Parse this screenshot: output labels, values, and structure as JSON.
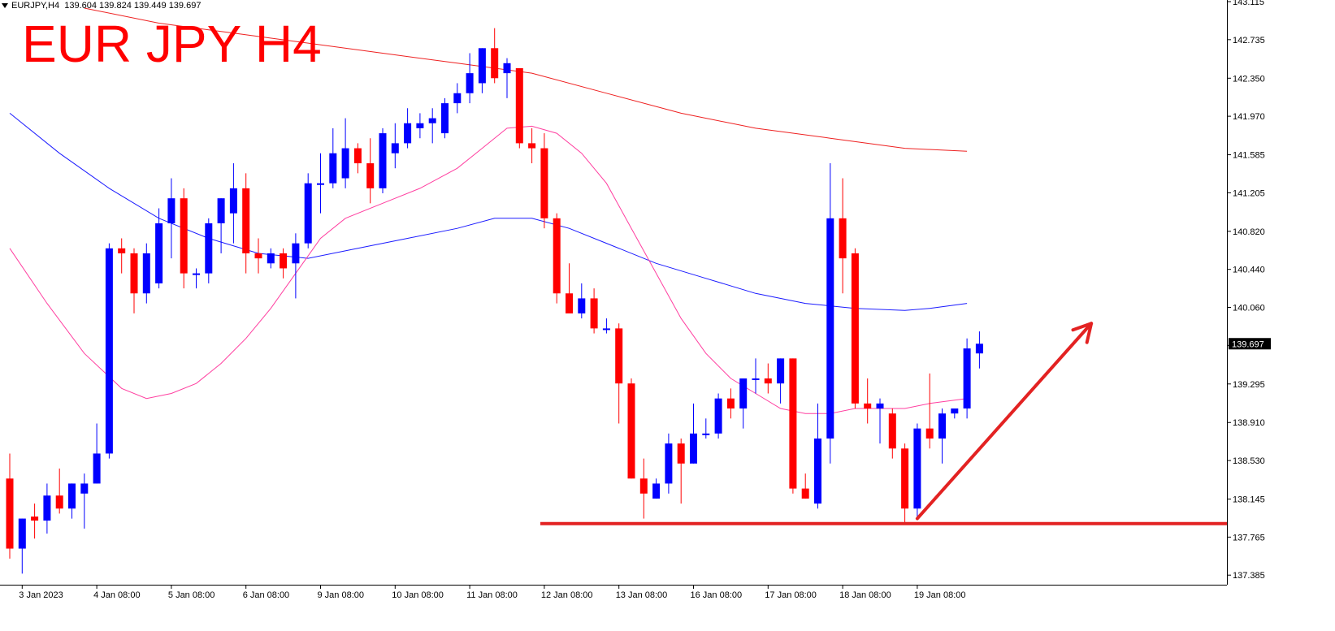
{
  "header": {
    "symbol_label": "EURJPY,H4",
    "ohlc_label": "139.604 139.824 139.449 139.697",
    "big_title": "EUR JPY H4"
  },
  "colors": {
    "bull": "#0000ff",
    "bear": "#ff0000",
    "ma_fast": "#ff3fa0",
    "ma_mid": "#1a1aff",
    "ma_slow": "#ee2020",
    "annotation": "#e32222",
    "axis": "#000000",
    "price_tag_bg": "#000000"
  },
  "chart_data": {
    "type": "candlestick",
    "title": "EUR JPY H4",
    "ylim": [
      137.2,
      143.115
    ],
    "y_ticks": [
      "143.115",
      "142.735",
      "142.350",
      "141.970",
      "141.585",
      "141.205",
      "140.820",
      "140.440",
      "140.060",
      "139.680",
      "139.295",
      "138.910",
      "138.530",
      "138.145",
      "137.765",
      "137.385"
    ],
    "x_ticks": [
      {
        "label": "3 Jan 2023",
        "index": 1
      },
      {
        "label": "4 Jan 08:00",
        "index": 7
      },
      {
        "label": "5 Jan 08:00",
        "index": 13
      },
      {
        "label": "6 Jan 08:00",
        "index": 19
      },
      {
        "label": "9 Jan 08:00",
        "index": 25
      },
      {
        "label": "10 Jan 08:00",
        "index": 31
      },
      {
        "label": "11 Jan 08:00",
        "index": 37
      },
      {
        "label": "12 Jan 08:00",
        "index": 43
      },
      {
        "label": "13 Jan 08:00",
        "index": 49
      },
      {
        "label": "16 Jan 08:00",
        "index": 55
      },
      {
        "label": "17 Jan 08:00",
        "index": 61
      },
      {
        "label": "18 Jan 08:00",
        "index": 67
      },
      {
        "label": "19 Jan 08:00",
        "index": 73
      }
    ],
    "current_price": "139.697",
    "candles": [
      {
        "o": 138.35,
        "h": 138.6,
        "l": 137.55,
        "c": 137.65
      },
      {
        "o": 137.65,
        "h": 137.95,
        "l": 137.4,
        "c": 137.95
      },
      {
        "o": 137.97,
        "h": 138.1,
        "l": 137.75,
        "c": 137.93
      },
      {
        "o": 137.93,
        "h": 138.3,
        "l": 137.8,
        "c": 138.18
      },
      {
        "o": 138.18,
        "h": 138.45,
        "l": 138.0,
        "c": 138.05
      },
      {
        "o": 138.05,
        "h": 138.3,
        "l": 137.95,
        "c": 138.3
      },
      {
        "o": 138.2,
        "h": 138.4,
        "l": 137.85,
        "c": 138.3
      },
      {
        "o": 138.3,
        "h": 138.9,
        "l": 138.3,
        "c": 138.6
      },
      {
        "o": 138.6,
        "h": 140.7,
        "l": 138.55,
        "c": 140.65
      },
      {
        "o": 140.65,
        "h": 140.75,
        "l": 140.4,
        "c": 140.6
      },
      {
        "o": 140.6,
        "h": 140.65,
        "l": 140.0,
        "c": 140.2
      },
      {
        "o": 140.2,
        "h": 140.7,
        "l": 140.1,
        "c": 140.6
      },
      {
        "o": 140.3,
        "h": 141.05,
        "l": 140.25,
        "c": 140.9
      },
      {
        "o": 140.9,
        "h": 141.35,
        "l": 140.55,
        "c": 141.15
      },
      {
        "o": 141.15,
        "h": 141.25,
        "l": 140.25,
        "c": 140.4
      },
      {
        "o": 140.4,
        "h": 140.45,
        "l": 140.25,
        "c": 140.4
      },
      {
        "o": 140.4,
        "h": 140.95,
        "l": 140.3,
        "c": 140.9
      },
      {
        "o": 140.9,
        "h": 141.15,
        "l": 140.6,
        "c": 141.15
      },
      {
        "o": 141.0,
        "h": 141.5,
        "l": 140.7,
        "c": 141.25
      },
      {
        "o": 141.25,
        "h": 141.4,
        "l": 140.4,
        "c": 140.6
      },
      {
        "o": 140.6,
        "h": 140.75,
        "l": 140.4,
        "c": 140.55
      },
      {
        "o": 140.5,
        "h": 140.65,
        "l": 140.45,
        "c": 140.6
      },
      {
        "o": 140.6,
        "h": 140.65,
        "l": 140.35,
        "c": 140.45
      },
      {
        "o": 140.5,
        "h": 140.8,
        "l": 140.15,
        "c": 140.7
      },
      {
        "o": 140.7,
        "h": 141.4,
        "l": 140.65,
        "c": 141.3
      },
      {
        "o": 141.3,
        "h": 141.6,
        "l": 141.0,
        "c": 141.3
      },
      {
        "o": 141.3,
        "h": 141.85,
        "l": 141.25,
        "c": 141.6
      },
      {
        "o": 141.35,
        "h": 141.95,
        "l": 141.25,
        "c": 141.65
      },
      {
        "o": 141.65,
        "h": 141.7,
        "l": 141.4,
        "c": 141.5
      },
      {
        "o": 141.5,
        "h": 141.75,
        "l": 141.1,
        "c": 141.25
      },
      {
        "o": 141.25,
        "h": 141.85,
        "l": 141.2,
        "c": 141.8
      },
      {
        "o": 141.6,
        "h": 141.9,
        "l": 141.45,
        "c": 141.7
      },
      {
        "o": 141.7,
        "h": 142.05,
        "l": 141.65,
        "c": 141.9
      },
      {
        "o": 141.85,
        "h": 142.0,
        "l": 141.75,
        "c": 141.9
      },
      {
        "o": 141.9,
        "h": 142.05,
        "l": 141.7,
        "c": 141.95
      },
      {
        "o": 141.8,
        "h": 142.15,
        "l": 141.75,
        "c": 142.1
      },
      {
        "o": 142.1,
        "h": 142.3,
        "l": 142.0,
        "c": 142.2
      },
      {
        "o": 142.2,
        "h": 142.6,
        "l": 142.1,
        "c": 142.4
      },
      {
        "o": 142.3,
        "h": 142.65,
        "l": 142.2,
        "c": 142.65
      },
      {
        "o": 142.65,
        "h": 142.85,
        "l": 142.3,
        "c": 142.35
      },
      {
        "o": 142.4,
        "h": 142.55,
        "l": 142.15,
        "c": 142.5
      },
      {
        "o": 142.45,
        "h": 142.45,
        "l": 141.65,
        "c": 141.7
      },
      {
        "o": 141.7,
        "h": 141.85,
        "l": 141.5,
        "c": 141.65
      },
      {
        "o": 141.65,
        "h": 141.8,
        "l": 140.85,
        "c": 140.95
      },
      {
        "o": 140.95,
        "h": 141.0,
        "l": 140.1,
        "c": 140.2
      },
      {
        "o": 140.2,
        "h": 140.5,
        "l": 140.05,
        "c": 140.0
      },
      {
        "o": 140.0,
        "h": 140.3,
        "l": 139.95,
        "c": 140.15
      },
      {
        "o": 140.15,
        "h": 140.25,
        "l": 139.8,
        "c": 139.85
      },
      {
        "o": 139.85,
        "h": 139.95,
        "l": 139.8,
        "c": 139.85
      },
      {
        "o": 139.85,
        "h": 139.9,
        "l": 138.9,
        "c": 139.3
      },
      {
        "o": 139.3,
        "h": 139.35,
        "l": 138.35,
        "c": 138.35
      },
      {
        "o": 138.35,
        "h": 138.55,
        "l": 137.95,
        "c": 138.2
      },
      {
        "o": 138.15,
        "h": 138.35,
        "l": 138.15,
        "c": 138.3
      },
      {
        "o": 138.3,
        "h": 138.8,
        "l": 138.2,
        "c": 138.7
      },
      {
        "o": 138.7,
        "h": 138.75,
        "l": 138.1,
        "c": 138.5
      },
      {
        "o": 138.5,
        "h": 139.1,
        "l": 138.5,
        "c": 138.8
      },
      {
        "o": 138.8,
        "h": 138.95,
        "l": 138.75,
        "c": 138.8
      },
      {
        "o": 138.8,
        "h": 139.2,
        "l": 138.75,
        "c": 139.15
      },
      {
        "o": 139.15,
        "h": 139.25,
        "l": 138.95,
        "c": 139.05
      },
      {
        "o": 139.05,
        "h": 139.35,
        "l": 138.85,
        "c": 139.35
      },
      {
        "o": 139.35,
        "h": 139.55,
        "l": 139.2,
        "c": 139.35
      },
      {
        "o": 139.35,
        "h": 139.5,
        "l": 139.2,
        "c": 139.3
      },
      {
        "o": 139.3,
        "h": 139.55,
        "l": 139.1,
        "c": 139.55
      },
      {
        "o": 139.55,
        "h": 139.55,
        "l": 138.2,
        "c": 138.25
      },
      {
        "o": 138.25,
        "h": 138.4,
        "l": 138.15,
        "c": 138.15
      },
      {
        "o": 138.1,
        "h": 139.1,
        "l": 138.05,
        "c": 138.75
      },
      {
        "o": 138.75,
        "h": 141.5,
        "l": 138.5,
        "c": 140.95
      },
      {
        "o": 140.95,
        "h": 141.35,
        "l": 140.2,
        "c": 140.55
      },
      {
        "o": 140.6,
        "h": 140.65,
        "l": 139.05,
        "c": 139.1
      },
      {
        "o": 139.1,
        "h": 139.35,
        "l": 138.9,
        "c": 139.05
      },
      {
        "o": 139.05,
        "h": 139.15,
        "l": 138.7,
        "c": 139.1
      },
      {
        "o": 139.0,
        "h": 139.05,
        "l": 138.55,
        "c": 138.65
      },
      {
        "o": 138.65,
        "h": 138.7,
        "l": 137.9,
        "c": 138.05
      },
      {
        "o": 138.05,
        "h": 138.9,
        "l": 137.95,
        "c": 138.85
      },
      {
        "o": 138.85,
        "h": 139.4,
        "l": 138.65,
        "c": 138.75
      },
      {
        "o": 138.75,
        "h": 139.05,
        "l": 138.5,
        "c": 139.0
      },
      {
        "o": 139.0,
        "h": 139.05,
        "l": 138.95,
        "c": 139.05
      },
      {
        "o": 139.05,
        "h": 139.75,
        "l": 138.95,
        "c": 139.65
      },
      {
        "o": 139.6,
        "h": 139.82,
        "l": 139.45,
        "c": 139.697
      }
    ],
    "ma_fast": [
      [
        0,
        140.65
      ],
      [
        3,
        140.1
      ],
      [
        6,
        139.6
      ],
      [
        9,
        139.25
      ],
      [
        11,
        139.15
      ],
      [
        13,
        139.2
      ],
      [
        15,
        139.3
      ],
      [
        17,
        139.5
      ],
      [
        19,
        139.75
      ],
      [
        21,
        140.05
      ],
      [
        23,
        140.4
      ],
      [
        25,
        140.75
      ],
      [
        27,
        140.95
      ],
      [
        30,
        141.1
      ],
      [
        33,
        141.25
      ],
      [
        36,
        141.45
      ],
      [
        38,
        141.65
      ],
      [
        40,
        141.85
      ],
      [
        42,
        141.87
      ],
      [
        44,
        141.8
      ],
      [
        46,
        141.6
      ],
      [
        48,
        141.3
      ],
      [
        50,
        140.85
      ],
      [
        52,
        140.4
      ],
      [
        54,
        139.95
      ],
      [
        56,
        139.6
      ],
      [
        58,
        139.35
      ],
      [
        60,
        139.2
      ],
      [
        62,
        139.05
      ],
      [
        64,
        139.0
      ],
      [
        66,
        139.0
      ],
      [
        68,
        139.05
      ],
      [
        70,
        139.05
      ],
      [
        72,
        139.05
      ],
      [
        74,
        139.1
      ],
      [
        77,
        139.15
      ]
    ],
    "ma_mid": [
      [
        0,
        142.0
      ],
      [
        4,
        141.6
      ],
      [
        8,
        141.25
      ],
      [
        12,
        140.95
      ],
      [
        16,
        140.75
      ],
      [
        20,
        140.6
      ],
      [
        24,
        140.55
      ],
      [
        28,
        140.65
      ],
      [
        32,
        140.75
      ],
      [
        36,
        140.85
      ],
      [
        39,
        140.95
      ],
      [
        42,
        140.95
      ],
      [
        45,
        140.85
      ],
      [
        48,
        140.7
      ],
      [
        52,
        140.5
      ],
      [
        56,
        140.35
      ],
      [
        60,
        140.2
      ],
      [
        64,
        140.1
      ],
      [
        68,
        140.05
      ],
      [
        72,
        140.03
      ],
      [
        74,
        140.05
      ],
      [
        77,
        140.1
      ]
    ],
    "ma_slow": [
      [
        6,
        143.05
      ],
      [
        12,
        142.9
      ],
      [
        18,
        142.8
      ],
      [
        24,
        142.7
      ],
      [
        30,
        142.6
      ],
      [
        36,
        142.5
      ],
      [
        42,
        142.4
      ],
      [
        48,
        142.2
      ],
      [
        54,
        142.0
      ],
      [
        60,
        141.85
      ],
      [
        66,
        141.75
      ],
      [
        72,
        141.65
      ],
      [
        77,
        141.62
      ]
    ],
    "support_level": 137.9,
    "arrow": {
      "from": {
        "index": 73,
        "price": 137.95
      },
      "to": {
        "index": 87,
        "price": 139.9
      }
    }
  }
}
